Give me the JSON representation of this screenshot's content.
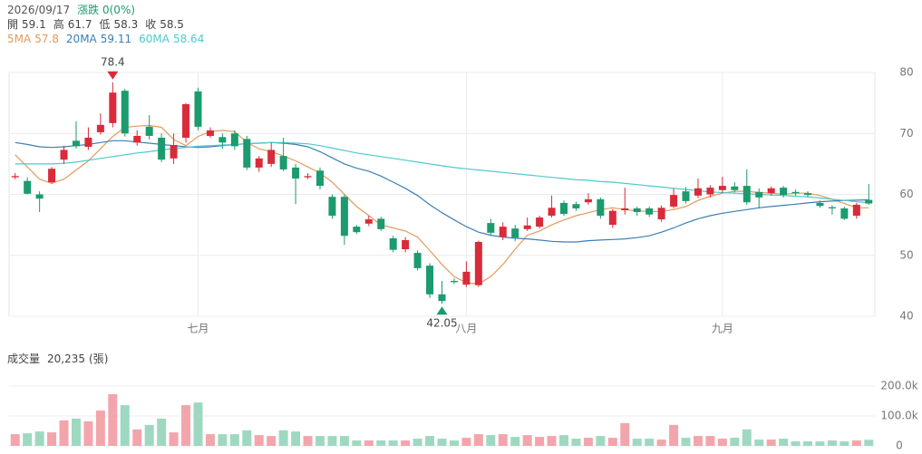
{
  "header": {
    "date": "2026/09/17",
    "change": "漲跌 0(0%)",
    "open_label": "開",
    "high_label": "高",
    "low_label": "低",
    "close_label": "收",
    "volume_label": "成交量",
    "volume_value": "20,235",
    "volume_unit": "(張)"
  },
  "chart_data": [
    {
      "type": "candlestick",
      "categories": [
        null,
        null,
        null,
        null,
        null,
        null,
        null,
        null,
        null,
        null,
        null,
        null,
        null,
        null,
        null,
        "七月",
        null,
        null,
        null,
        null,
        null,
        null,
        null,
        null,
        null,
        null,
        null,
        null,
        null,
        null,
        null,
        null,
        null,
        null,
        null,
        null,
        null,
        "八月",
        null,
        null,
        null,
        null,
        null,
        null,
        null,
        null,
        null,
        null,
        null,
        null,
        null,
        null,
        null,
        null,
        null,
        null,
        null,
        null,
        "九月",
        null,
        null,
        null,
        null,
        null,
        null,
        null,
        null,
        null,
        null,
        null,
        null
      ],
      "open": [
        62.8,
        62.2,
        60,
        62,
        65.7,
        68.8,
        67.8,
        70.2,
        71.7,
        77,
        68.5,
        71.1,
        69.3,
        65.9,
        69.3,
        76.9,
        69.6,
        69.4,
        70,
        69.1,
        64.4,
        65,
        66.3,
        64.4,
        62.8,
        63.9,
        59.6,
        59.6,
        54.7,
        55.2,
        56,
        52.8,
        51,
        50.4,
        48.3,
        43.6,
        45.8,
        45.2,
        45.1,
        55.3,
        53,
        54.4,
        54.3,
        54.7,
        56.5,
        58.6,
        58.4,
        58.7,
        59.2,
        55,
        57.4,
        57.7,
        57.7,
        55.9,
        58,
        60.5,
        59.8,
        60,
        60.7,
        61.3,
        61.4,
        60.4,
        60.2,
        61.1,
        60.4,
        60.2,
        58.6,
        57.9,
        57.7,
        56.5,
        59.1
      ],
      "high": [
        63.5,
        62.8,
        60.5,
        64.5,
        68,
        72,
        71,
        73.3,
        78.4,
        77.3,
        70.5,
        73,
        70,
        70,
        75,
        77.5,
        71,
        70,
        70.5,
        69.6,
        66.3,
        68.5,
        69.3,
        65,
        63.5,
        64.4,
        60,
        60,
        55,
        56.5,
        56.3,
        53.2,
        53,
        50.8,
        48.7,
        45.8,
        46.2,
        49,
        52.4,
        56,
        55.4,
        55,
        56.2,
        56.5,
        59.8,
        59,
        58.8,
        60.2,
        59.5,
        57.6,
        61.1,
        58,
        58,
        58.2,
        61,
        61.2,
        62.6,
        61.5,
        62.9,
        62,
        64.1,
        61,
        61.3,
        61.4,
        60.8,
        60.5,
        59,
        58.2,
        58,
        58.6,
        61.7
      ],
      "low": [
        62.5,
        60,
        57.1,
        61.8,
        65,
        67.5,
        67.3,
        69.8,
        71,
        69.5,
        68,
        69,
        65.3,
        65,
        68.5,
        70.5,
        69.3,
        67.5,
        67.3,
        64,
        63.7,
        64.5,
        63.8,
        58.4,
        62.5,
        60.8,
        56,
        51.7,
        53.5,
        54.8,
        54,
        50.5,
        50.5,
        47.5,
        43,
        42.05,
        45.3,
        44.8,
        44.8,
        53.2,
        52.5,
        52.3,
        54,
        54.4,
        56.2,
        56.5,
        57.3,
        58.3,
        56,
        54.5,
        56.7,
        56.5,
        56.3,
        55.5,
        57.7,
        58.5,
        59.4,
        59.5,
        60.2,
        60.3,
        58.3,
        57.7,
        59.8,
        59.5,
        59.8,
        59.5,
        57.8,
        56.7,
        55.8,
        56,
        58.3
      ],
      "close": [
        63,
        60.1,
        59.3,
        64.2,
        67.3,
        67.9,
        69.3,
        71.4,
        76.7,
        70,
        69.6,
        69.6,
        65.7,
        68.1,
        74.8,
        71.1,
        70.5,
        68.5,
        67.9,
        64.4,
        65.9,
        67.3,
        64.1,
        62.6,
        63,
        61.4,
        56.5,
        53.2,
        53.8,
        55.9,
        54.3,
        50.9,
        52.5,
        47.9,
        43.6,
        42.5,
        45.6,
        47.3,
        52.2,
        53.7,
        54.7,
        52.9,
        54.9,
        56.2,
        57.8,
        56.8,
        57.7,
        59.2,
        56.5,
        57.3,
        57.7,
        57.1,
        56.7,
        57.8,
        59.9,
        58.9,
        61,
        61.1,
        61.4,
        60.7,
        58.7,
        59.5,
        61,
        59.9,
        60.2,
        59.9,
        58.1,
        57.7,
        56,
        58.3,
        58.5
      ],
      "series": [
        {
          "name": "5MA",
          "color": "#e39a5a",
          "values": [
            66.5,
            64.5,
            62.5,
            61.8,
            62.5,
            64,
            65.5,
            67.5,
            69.5,
            71,
            71.2,
            71.3,
            71,
            69,
            68,
            69.5,
            70.3,
            70.5,
            70.3,
            68.5,
            67.5,
            67,
            66.3,
            65.5,
            64.5,
            63.5,
            62,
            60,
            58,
            56.5,
            55,
            54.5,
            54,
            53,
            50.8,
            48.5,
            46.5,
            45.5,
            45.3,
            46.5,
            48.5,
            51,
            53.3,
            54,
            55,
            55.8,
            56.5,
            57,
            57.5,
            57.8,
            57.5,
            57.3,
            57.2,
            57.2,
            57.5,
            58,
            59,
            59.7,
            60.2,
            60.5,
            60.5,
            60.3,
            60.2,
            60,
            60.2,
            60.2,
            59.8,
            59.2,
            58.5,
            57.8,
            57.8
          ]
        },
        {
          "name": "20MA",
          "color": "#3b7fb6",
          "values": [
            68.5,
            68.2,
            67.8,
            67.7,
            67.8,
            68,
            68.2,
            68.5,
            68.8,
            68.8,
            68.6,
            68.4,
            68.2,
            68,
            67.8,
            67.7,
            67.8,
            68,
            68.2,
            68.3,
            68.4,
            68.5,
            68.4,
            68.2,
            67.8,
            67,
            66,
            65,
            64.3,
            63.8,
            63,
            62,
            61,
            59.8,
            58.3,
            57,
            55.8,
            54.7,
            53.8,
            53.3,
            53,
            52.8,
            52.7,
            52.5,
            52.3,
            52.2,
            52.2,
            52.4,
            52.5,
            52.6,
            52.7,
            52.9,
            53.2,
            53.8,
            54.5,
            55.3,
            56,
            56.5,
            56.9,
            57.2,
            57.5,
            57.8,
            58,
            58.2,
            58.4,
            58.6,
            58.8,
            58.9,
            59,
            59.05,
            59.11
          ]
        },
        {
          "name": "60MA",
          "color": "#4fc9cc",
          "values": [
            65,
            65,
            65,
            65,
            65.1,
            65.3,
            65.6,
            65.9,
            66.2,
            66.5,
            66.8,
            67,
            67.3,
            67.5,
            67.7,
            67.9,
            68,
            68.1,
            68.2,
            68.3,
            68.4,
            68.5,
            68.5,
            68.4,
            68.3,
            68,
            67.6,
            67.2,
            66.8,
            66.5,
            66.2,
            65.9,
            65.6,
            65.3,
            65,
            64.7,
            64.4,
            64.2,
            64,
            63.8,
            63.6,
            63.4,
            63.2,
            63,
            62.8,
            62.6,
            62.4,
            62.3,
            62.1,
            62,
            61.8,
            61.6,
            61.4,
            61.2,
            61,
            60.8,
            60.6,
            60.4,
            60.3,
            60.2,
            60.1,
            60,
            59.9,
            59.8,
            59.7,
            59.6,
            59.4,
            59.2,
            59,
            58.8,
            58.64
          ]
        }
      ],
      "up_color": "#d92b3a",
      "down_color": "#1b9b6e",
      "ylim": [
        40,
        80
      ],
      "yticks": [
        40,
        50,
        60,
        70,
        80
      ],
      "grid": true
    },
    {
      "type": "bar",
      "values": [
        39000,
        42000,
        48000,
        45000,
        85000,
        91000,
        82000,
        118000,
        173000,
        136000,
        55000,
        70000,
        91000,
        45000,
        136000,
        145000,
        39000,
        39000,
        39000,
        52000,
        36000,
        33000,
        52000,
        48000,
        33000,
        33000,
        33000,
        33000,
        18000,
        18000,
        18000,
        18000,
        18000,
        24000,
        33000,
        24000,
        18000,
        27000,
        39000,
        36000,
        39000,
        30000,
        36000,
        30000,
        33000,
        36000,
        24000,
        27000,
        33000,
        27000,
        76000,
        24000,
        24000,
        21000,
        70000,
        27000,
        33000,
        33000,
        24000,
        27000,
        55000,
        21000,
        21000,
        24000,
        15000,
        15000,
        15000,
        18000,
        15000,
        18000,
        20235
      ],
      "up_color": "#f3a5ac",
      "down_color": "#9fd8c1",
      "ylim": [
        0,
        250000
      ],
      "yticks": [
        0,
        {
          "value": 100000,
          "label": "100.0k"
        },
        {
          "value": 200000,
          "label": "200.0k"
        }
      ],
      "grid": true
    }
  ]
}
